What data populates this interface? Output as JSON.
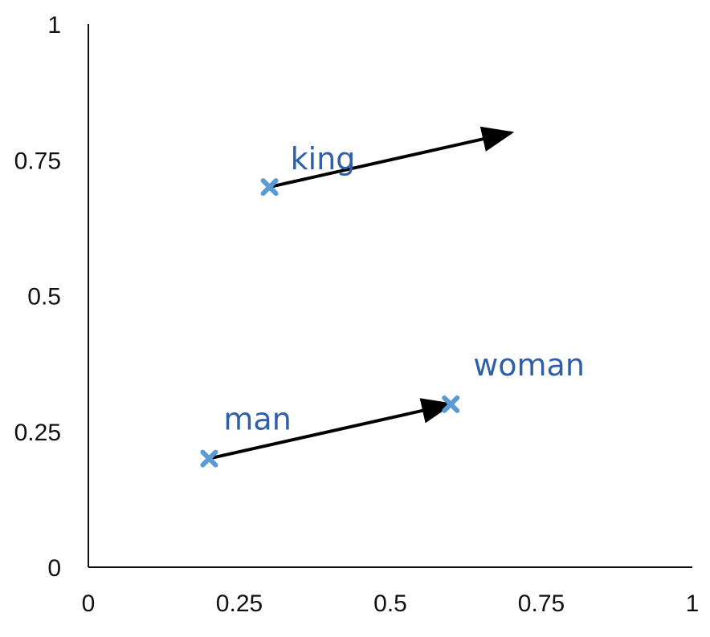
{
  "chart_data": {
    "type": "scatter",
    "title": "",
    "xlabel": "",
    "ylabel": "",
    "xlim": [
      0,
      1
    ],
    "ylim": [
      0,
      1
    ],
    "grid": false,
    "x_ticks": [
      {
        "value": 0,
        "label": "0"
      },
      {
        "value": 0.25,
        "label": "0.25"
      },
      {
        "value": 0.5,
        "label": "0.5"
      },
      {
        "value": 0.75,
        "label": "0.75"
      },
      {
        "value": 1,
        "label": "1"
      }
    ],
    "y_ticks": [
      {
        "value": 0,
        "label": "0"
      },
      {
        "value": 0.25,
        "label": "0.25"
      },
      {
        "value": 0.5,
        "label": "0.5"
      },
      {
        "value": 0.75,
        "label": "0.75"
      },
      {
        "value": 1,
        "label": "1"
      }
    ],
    "points": [
      {
        "label": "king",
        "x": 0.3,
        "y": 0.7
      },
      {
        "label": "man",
        "x": 0.2,
        "y": 0.2
      },
      {
        "label": "woman",
        "x": 0.6,
        "y": 0.3
      }
    ],
    "vectors": [
      {
        "from": [
          0.2,
          0.2
        ],
        "to": [
          0.6,
          0.3
        ]
      },
      {
        "from": [
          0.3,
          0.7
        ],
        "to": [
          0.7,
          0.8
        ]
      }
    ],
    "colors": {
      "marker": "#5b9bd5",
      "point_label": "#2f5fa8",
      "arrow": "#000000",
      "axis": "#111111"
    }
  }
}
